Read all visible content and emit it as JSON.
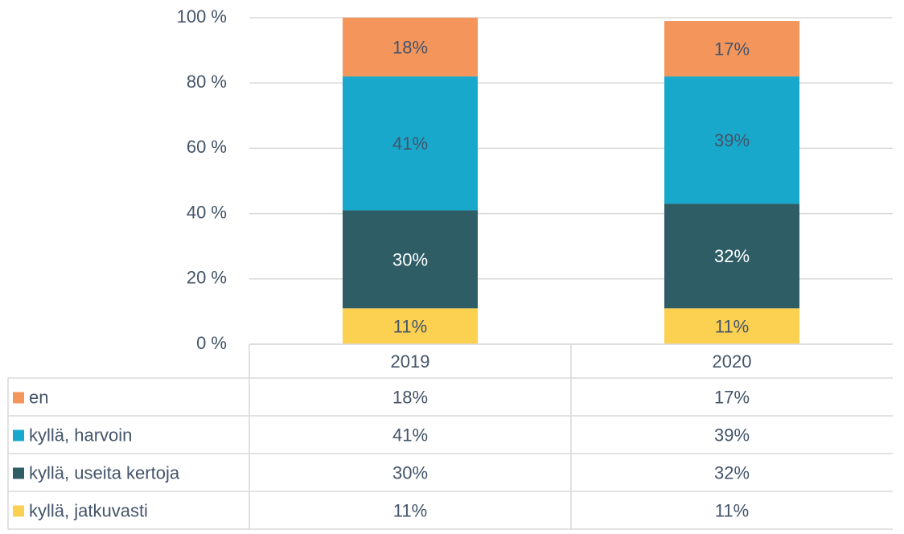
{
  "chart_data": {
    "type": "stacked_bar",
    "categories": [
      "2019",
      "2020"
    ],
    "series": [
      {
        "name": "kyllä, jatkuvasti",
        "color": "#fcd050",
        "label_color": "#44546a",
        "values": [
          11,
          11
        ],
        "value_labels": [
          "11%",
          "11%"
        ]
      },
      {
        "name": "kyllä, useita kertoja",
        "color": "#2e5d66",
        "label_color": "#ffffff",
        "values": [
          30,
          32
        ],
        "value_labels": [
          "30%",
          "32%"
        ]
      },
      {
        "name": "kyllä, harvoin",
        "color": "#18a8cc",
        "label_color": "#44546a",
        "values": [
          41,
          39
        ],
        "value_labels": [
          "41%",
          "39%"
        ]
      },
      {
        "name": "en",
        "color": "#f4955c",
        "label_color": "#44546a",
        "values": [
          18,
          17
        ],
        "value_labels": [
          "18%",
          "17%"
        ]
      }
    ],
    "ylim": [
      0,
      100
    ],
    "yticks": [
      {
        "value": 0,
        "label": "0 %"
      },
      {
        "value": 20,
        "label": "20 %"
      },
      {
        "value": 40,
        "label": "40 %"
      },
      {
        "value": 60,
        "label": "60 %"
      },
      {
        "value": 80,
        "label": "80 %"
      },
      {
        "value": 100,
        "label": "100 %"
      }
    ],
    "grid": true,
    "data_table": true
  }
}
